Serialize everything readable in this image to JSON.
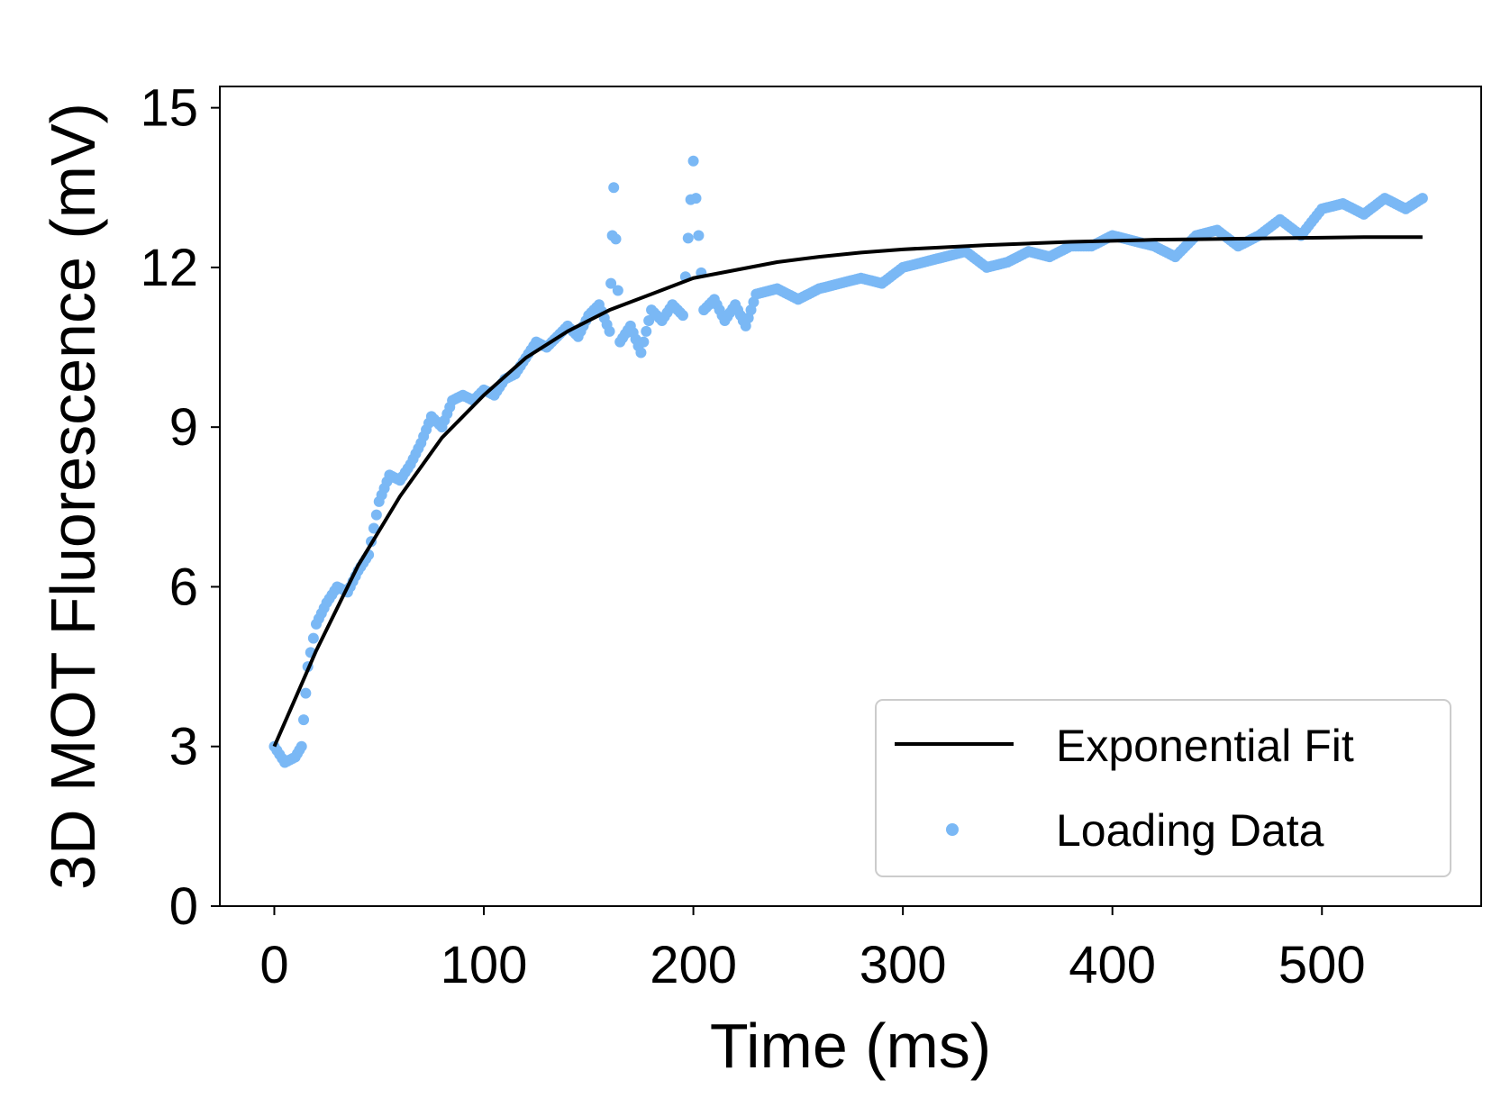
{
  "chart_data": {
    "type": "scatter",
    "title": "",
    "xlabel": "Time (ms)",
    "ylabel": "3D MOT Fluorescence (mV)",
    "xlim": [
      -26,
      576
    ],
    "ylim": [
      0,
      15.4
    ],
    "xticks": [
      0,
      100,
      200,
      300,
      400,
      500
    ],
    "xtick_labels": [
      "0",
      "100",
      "200",
      "300",
      "400",
      "500"
    ],
    "yticks": [
      0,
      3,
      6,
      9,
      12,
      15
    ],
    "ytick_labels": [
      "0",
      "3",
      "6",
      "9",
      "12",
      "15"
    ],
    "grid": false,
    "legend_position": "lower-right",
    "series": [
      {
        "name": "Exponential Fit",
        "type": "line",
        "color": "#000000",
        "x": [
          0,
          20,
          40,
          60,
          80,
          100,
          120,
          140,
          160,
          180,
          200,
          220,
          240,
          260,
          280,
          300,
          320,
          340,
          360,
          380,
          400,
          420,
          440,
          460,
          480,
          500,
          520,
          548
        ],
        "y": [
          3.0,
          4.8,
          6.4,
          7.7,
          8.8,
          9.6,
          10.3,
          10.8,
          11.2,
          11.5,
          11.8,
          11.95,
          12.1,
          12.2,
          12.28,
          12.34,
          12.38,
          12.42,
          12.45,
          12.48,
          12.5,
          12.52,
          12.53,
          12.54,
          12.55,
          12.56,
          12.57,
          12.57
        ]
      },
      {
        "name": "Loading Data",
        "type": "scatter",
        "color": "#7ab8f5",
        "x": [
          0,
          5,
          10,
          13,
          16,
          20,
          25,
          30,
          35,
          40,
          45,
          50,
          55,
          60,
          65,
          70,
          75,
          80,
          85,
          90,
          95,
          100,
          105,
          110,
          115,
          120,
          125,
          130,
          135,
          140,
          145,
          150,
          155,
          160,
          162,
          165,
          170,
          175,
          180,
          185,
          190,
          195,
          200,
          205,
          210,
          215,
          220,
          225,
          230,
          240,
          250,
          260,
          270,
          280,
          290,
          300,
          310,
          320,
          330,
          340,
          350,
          360,
          370,
          380,
          390,
          400,
          410,
          420,
          430,
          440,
          450,
          460,
          470,
          480,
          490,
          500,
          510,
          520,
          530,
          540,
          548
        ],
        "y": [
          3.0,
          2.7,
          2.8,
          3.0,
          4.5,
          5.3,
          5.7,
          6.0,
          5.9,
          6.3,
          6.6,
          7.6,
          8.1,
          8.0,
          8.3,
          8.7,
          9.2,
          9.0,
          9.5,
          9.6,
          9.5,
          9.7,
          9.6,
          9.9,
          10.0,
          10.3,
          10.6,
          10.5,
          10.7,
          10.9,
          10.7,
          11.1,
          11.3,
          10.8,
          13.5,
          10.6,
          10.9,
          10.4,
          11.2,
          11.0,
          11.3,
          11.1,
          14.0,
          11.2,
          11.4,
          11.0,
          11.3,
          10.9,
          11.5,
          11.6,
          11.4,
          11.6,
          11.7,
          11.8,
          11.7,
          12.0,
          12.1,
          12.2,
          12.3,
          12.0,
          12.1,
          12.3,
          12.2,
          12.4,
          12.4,
          12.6,
          12.5,
          12.4,
          12.2,
          12.6,
          12.7,
          12.4,
          12.6,
          12.9,
          12.6,
          13.1,
          13.2,
          13.0,
          13.3,
          13.1,
          13.3
        ]
      }
    ]
  }
}
